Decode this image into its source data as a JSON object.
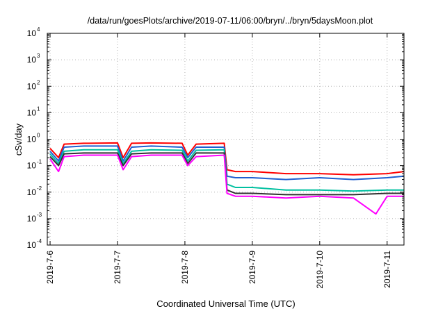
{
  "chart_data": {
    "type": "line",
    "title": "/data/run/goesPlots/archive/2019-07-11/06:00/bryn/../bryn/5daysMoon.plot",
    "xlabel": "Coordinated Universal Time (UTC)",
    "ylabel": "cSv/day",
    "y_scale": "log",
    "ylim": [
      0.0001,
      10000
    ],
    "y_tick_bases": [
      "10",
      "10",
      "10",
      "10",
      "10",
      "10",
      "10",
      "10",
      "10"
    ],
    "y_tick_exponents": [
      "-4",
      "-3",
      "-2",
      "-1",
      "0",
      "1",
      "2",
      "3",
      "4"
    ],
    "xlim": [
      "2019-07-05 23:00",
      "2019-07-11 06:00"
    ],
    "x_tick_labels": [
      "2019-7-6",
      "2019-7-7",
      "2019-7-8",
      "2019-7-9",
      "2019-7-10",
      "2019-7-11"
    ],
    "x_tick_values": [
      "2019-07-06 00:00",
      "2019-07-07 00:00",
      "2019-07-08 00:00",
      "2019-07-09 00:00",
      "2019-07-10 00:00",
      "2019-07-11 00:00"
    ],
    "grid": true,
    "legend": "none",
    "series": [
      {
        "color": "#ff0000",
        "points": [
          [
            "2019-07-06 00:00",
            0.45
          ],
          [
            "2019-07-06 03:00",
            0.2
          ],
          [
            "2019-07-06 05:00",
            0.65
          ],
          [
            "2019-07-06 12:00",
            0.7
          ],
          [
            "2019-07-07 00:00",
            0.72
          ],
          [
            "2019-07-07 02:00",
            0.2
          ],
          [
            "2019-07-07 05:00",
            0.7
          ],
          [
            "2019-07-07 12:00",
            0.72
          ],
          [
            "2019-07-07 23:00",
            0.7
          ],
          [
            "2019-07-08 01:00",
            0.25
          ],
          [
            "2019-07-08 04:00",
            0.65
          ],
          [
            "2019-07-08 14:00",
            0.7
          ],
          [
            "2019-07-08 15:00",
            0.07
          ],
          [
            "2019-07-08 18:00",
            0.06
          ],
          [
            "2019-07-09 00:00",
            0.06
          ],
          [
            "2019-07-09 12:00",
            0.05
          ],
          [
            "2019-07-10 00:00",
            0.05
          ],
          [
            "2019-07-10 12:00",
            0.045
          ],
          [
            "2019-07-11 00:00",
            0.05
          ],
          [
            "2019-07-11 06:00",
            0.06
          ]
        ]
      },
      {
        "color": "#1f5fd0",
        "points": [
          [
            "2019-07-06 00:00",
            0.35
          ],
          [
            "2019-07-06 03:00",
            0.15
          ],
          [
            "2019-07-06 05:00",
            0.5
          ],
          [
            "2019-07-06 12:00",
            0.55
          ],
          [
            "2019-07-07 00:00",
            0.55
          ],
          [
            "2019-07-07 02:00",
            0.15
          ],
          [
            "2019-07-07 05:00",
            0.5
          ],
          [
            "2019-07-07 12:00",
            0.55
          ],
          [
            "2019-07-07 23:00",
            0.5
          ],
          [
            "2019-07-08 01:00",
            0.2
          ],
          [
            "2019-07-08 04:00",
            0.5
          ],
          [
            "2019-07-08 14:00",
            0.5
          ],
          [
            "2019-07-08 15:00",
            0.04
          ],
          [
            "2019-07-08 18:00",
            0.035
          ],
          [
            "2019-07-09 00:00",
            0.035
          ],
          [
            "2019-07-09 12:00",
            0.03
          ],
          [
            "2019-07-10 00:00",
            0.035
          ],
          [
            "2019-07-10 12:00",
            0.03
          ],
          [
            "2019-07-11 00:00",
            0.035
          ],
          [
            "2019-07-11 06:00",
            0.04
          ]
        ]
      },
      {
        "color": "#00c0a0",
        "points": [
          [
            "2019-07-06 00:00",
            0.28
          ],
          [
            "2019-07-06 03:00",
            0.12
          ],
          [
            "2019-07-06 05:00",
            0.35
          ],
          [
            "2019-07-06 12:00",
            0.4
          ],
          [
            "2019-07-07 00:00",
            0.4
          ],
          [
            "2019-07-07 02:00",
            0.12
          ],
          [
            "2019-07-07 05:00",
            0.35
          ],
          [
            "2019-07-07 12:00",
            0.4
          ],
          [
            "2019-07-07 23:00",
            0.38
          ],
          [
            "2019-07-08 01:00",
            0.15
          ],
          [
            "2019-07-08 04:00",
            0.38
          ],
          [
            "2019-07-08 14:00",
            0.4
          ],
          [
            "2019-07-08 15:00",
            0.02
          ],
          [
            "2019-07-08 18:00",
            0.015
          ],
          [
            "2019-07-09 00:00",
            0.015
          ],
          [
            "2019-07-09 12:00",
            0.012
          ],
          [
            "2019-07-10 00:00",
            0.012
          ],
          [
            "2019-07-10 12:00",
            0.011
          ],
          [
            "2019-07-11 00:00",
            0.012
          ],
          [
            "2019-07-11 06:00",
            0.012
          ]
        ]
      },
      {
        "color": "#303030",
        "points": [
          [
            "2019-07-06 00:00",
            0.22
          ],
          [
            "2019-07-06 03:00",
            0.1
          ],
          [
            "2019-07-06 05:00",
            0.28
          ],
          [
            "2019-07-06 12:00",
            0.3
          ],
          [
            "2019-07-07 00:00",
            0.3
          ],
          [
            "2019-07-07 02:00",
            0.1
          ],
          [
            "2019-07-07 05:00",
            0.28
          ],
          [
            "2019-07-07 12:00",
            0.3
          ],
          [
            "2019-07-07 23:00",
            0.3
          ],
          [
            "2019-07-08 01:00",
            0.12
          ],
          [
            "2019-07-08 04:00",
            0.3
          ],
          [
            "2019-07-08 14:00",
            0.3
          ],
          [
            "2019-07-08 15:00",
            0.012
          ],
          [
            "2019-07-08 18:00",
            0.009
          ],
          [
            "2019-07-09 00:00",
            0.009
          ],
          [
            "2019-07-09 12:00",
            0.008
          ],
          [
            "2019-07-10 00:00",
            0.008
          ],
          [
            "2019-07-10 12:00",
            0.008
          ],
          [
            "2019-07-11 00:00",
            0.009
          ],
          [
            "2019-07-11 06:00",
            0.009
          ]
        ]
      },
      {
        "color": "#ff00ff",
        "points": [
          [
            "2019-07-06 00:00",
            0.18
          ],
          [
            "2019-07-06 03:00",
            0.06
          ],
          [
            "2019-07-06 05:00",
            0.22
          ],
          [
            "2019-07-06 12:00",
            0.25
          ],
          [
            "2019-07-07 00:00",
            0.25
          ],
          [
            "2019-07-07 02:00",
            0.07
          ],
          [
            "2019-07-07 05:00",
            0.22
          ],
          [
            "2019-07-07 12:00",
            0.25
          ],
          [
            "2019-07-07 23:00",
            0.25
          ],
          [
            "2019-07-08 01:00",
            0.1
          ],
          [
            "2019-07-08 04:00",
            0.22
          ],
          [
            "2019-07-08 14:00",
            0.25
          ],
          [
            "2019-07-08 15:00",
            0.009
          ],
          [
            "2019-07-08 18:00",
            0.007
          ],
          [
            "2019-07-09 00:00",
            0.007
          ],
          [
            "2019-07-09 12:00",
            0.006
          ],
          [
            "2019-07-10 00:00",
            0.007
          ],
          [
            "2019-07-10 12:00",
            0.006
          ],
          [
            "2019-07-10 20:00",
            0.0015
          ],
          [
            "2019-07-11 00:00",
            0.007
          ],
          [
            "2019-07-11 06:00",
            0.007
          ]
        ]
      }
    ]
  }
}
